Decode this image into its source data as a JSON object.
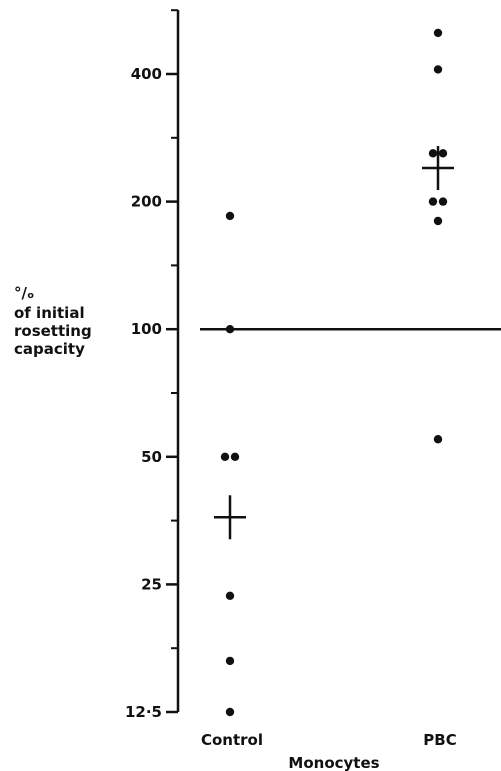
{
  "chart_data": {
    "type": "scatter",
    "y_scale": "log2",
    "ylim": [
      12.5,
      520
    ],
    "y_ticks": [
      {
        "value": 12.5,
        "label": "12·5"
      },
      {
        "value": 25,
        "label": "25"
      },
      {
        "value": 50,
        "label": "50"
      },
      {
        "value": 100,
        "label": "100"
      },
      {
        "value": 200,
        "label": "200"
      },
      {
        "value": 400,
        "label": "400"
      }
    ],
    "ylabel_lines": [
      "°/ₒ",
      "of initial",
      "rosetting",
      "capacity"
    ],
    "xlabel": "Monocytes",
    "categories": [
      "Control",
      "PBC"
    ],
    "reference_line": 100,
    "series": [
      {
        "category": "Control",
        "values": [
          185,
          100,
          50,
          50,
          23.5,
          16.5,
          12.5
        ],
        "mean": 36
      },
      {
        "category": "PBC",
        "values": [
          500,
          410,
          260,
          260,
          200,
          200,
          180,
          55
        ],
        "mean": 240
      }
    ]
  }
}
